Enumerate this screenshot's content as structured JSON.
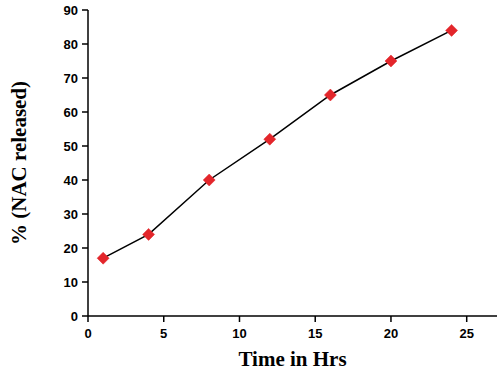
{
  "chart_data": {
    "type": "line",
    "x_label": "Time in Hrs",
    "y_label": "% (NAC released)",
    "x": [
      1,
      4,
      8,
      12,
      16,
      20,
      24
    ],
    "values": [
      17,
      24,
      40,
      52,
      65,
      75,
      84
    ],
    "color": "#e3262b",
    "marker": "diamond",
    "line_style": "solid",
    "xlim": [
      0,
      27
    ],
    "ylim": [
      0,
      90
    ],
    "xticks": [
      0,
      5,
      10,
      15,
      20,
      25
    ],
    "yticks": [
      0,
      10,
      20,
      30,
      40,
      50,
      60,
      70,
      80,
      90
    ],
    "grid": false
  }
}
